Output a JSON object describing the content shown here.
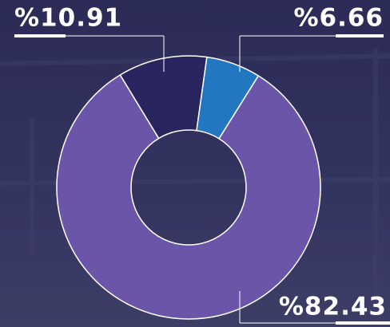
{
  "chart_data": {
    "type": "donut",
    "categories": [
      null,
      null,
      null
    ],
    "values": [
      10.91,
      6.66,
      82.43
    ],
    "value_labels": [
      "%10.91",
      "%6.66",
      "%82.43"
    ],
    "colors": [
      "#29255f",
      "#2377c0",
      "#6a55a8"
    ]
  }
}
